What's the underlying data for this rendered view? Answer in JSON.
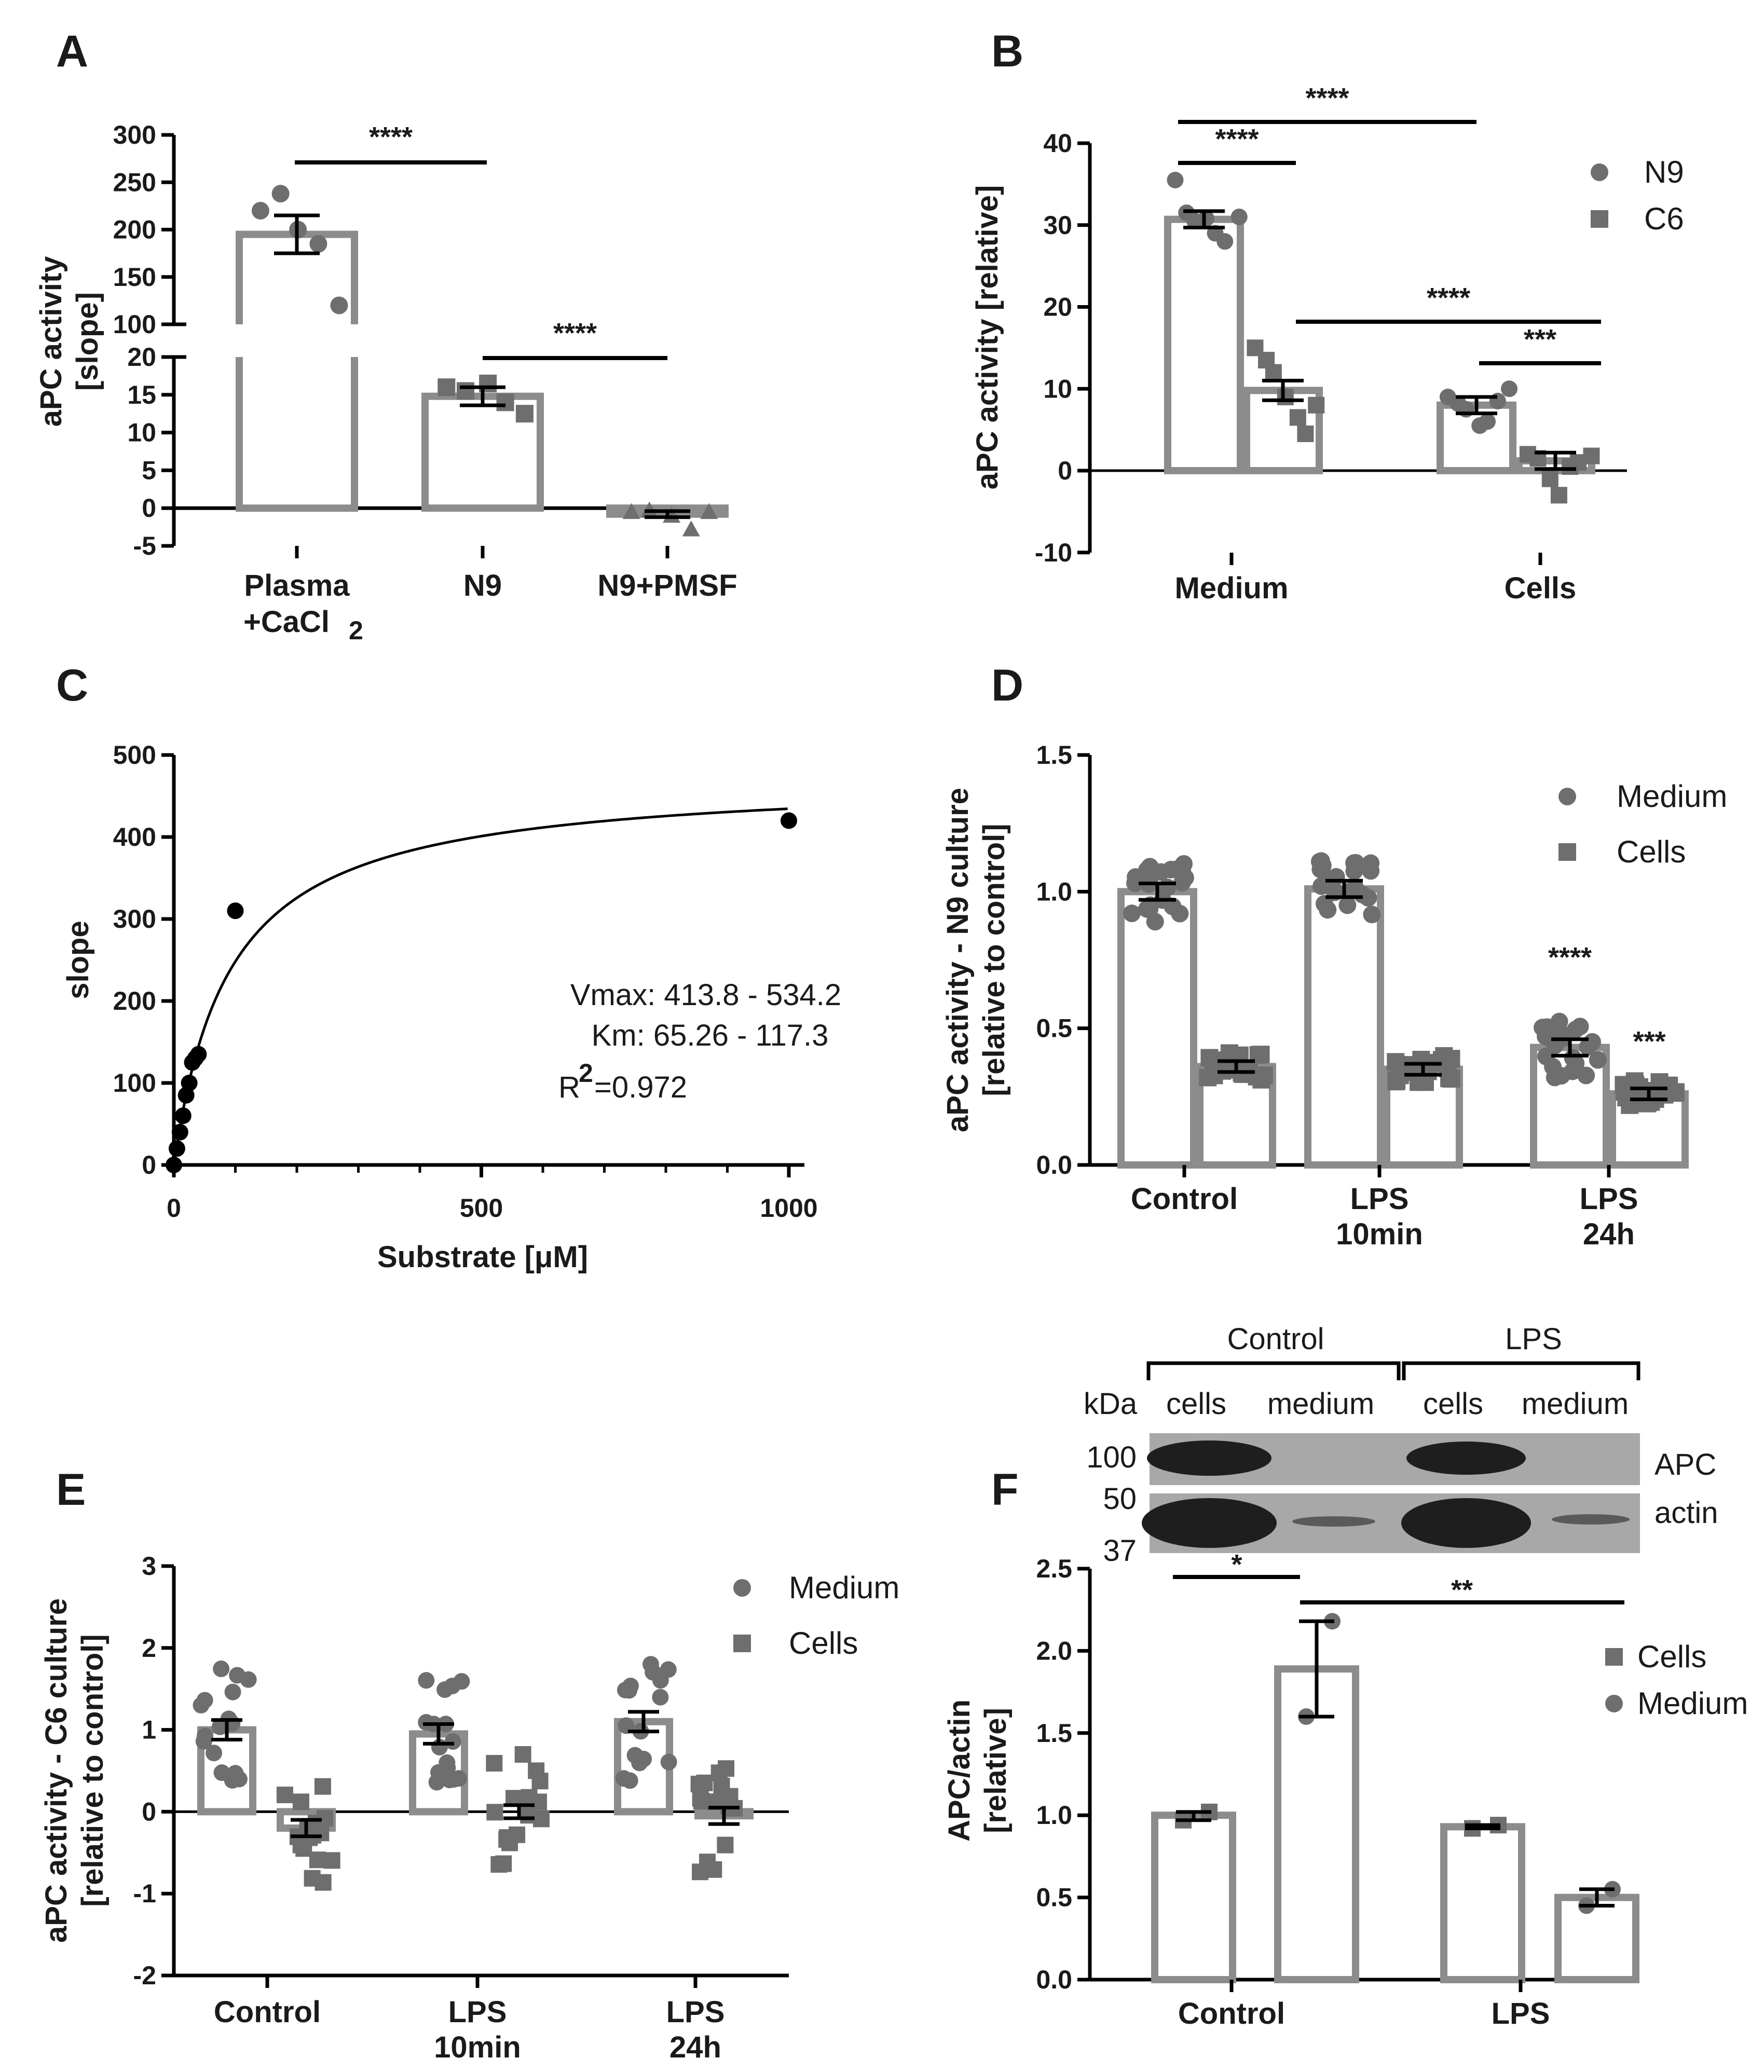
{
  "colors": {
    "marker": "#6e6e6e",
    "bar": "#8c8c8c",
    "text": "#1a1a1a",
    "blot_bg": "#a8a8a8",
    "band": "#1e1e1e"
  },
  "chart_data": [
    {
      "panel": "A",
      "type": "bar",
      "categories": [
        [
          "Plasma",
          "+CaCl",
          "2"
        ],
        [
          "N9"
        ],
        [
          "N9+PMSF"
        ]
      ],
      "series": [
        {
          "name": "aPC activity",
          "values": [
            195,
            14.8,
            -0.8
          ],
          "sem": [
            20,
            1.2,
            0.4
          ],
          "points": [
            [
              220,
              238,
              200,
              185,
              120
            ],
            [
              16,
              15.5,
              16.5,
              14,
              12.5
            ],
            [
              -0.5,
              -0.3,
              -1.0,
              -2.8,
              -0.5
            ]
          ]
        }
      ],
      "ylabel": [
        "aPC activity",
        "[slope]"
      ],
      "axis_break": {
        "lower": [
          -5,
          20
        ],
        "upper": [
          100,
          300
        ]
      },
      "yticks_lower": [
        "-5",
        "0",
        "5",
        "10",
        "15",
        "20"
      ],
      "yticks_upper": [
        "100",
        "150",
        "200",
        "250",
        "300"
      ],
      "significance": [
        "****",
        "****"
      ]
    },
    {
      "panel": "B",
      "type": "bar",
      "categories": [
        "Medium",
        "Cells"
      ],
      "series": [
        {
          "name": "N9",
          "values": [
            30.7,
            8.0
          ],
          "sem": [
            1.0,
            1.0
          ],
          "points": [
            [
              35.5,
              31.5,
              30.5,
              30.8,
              29.0,
              28.0,
              31.0
            ],
            [
              9.0,
              8.2,
              7.5,
              5.5,
              6.0,
              8.5,
              10.0
            ]
          ]
        },
        {
          "name": "C6",
          "values": [
            9.8,
            1.2
          ],
          "sem": [
            1.2,
            1.0
          ],
          "points": [
            [
              15.0,
              13.5,
              12.0,
              9.0,
              6.5,
              4.5,
              8.0
            ],
            [
              2.0,
              1.5,
              -1.0,
              -3.0,
              0.5,
              1.0,
              1.8
            ]
          ]
        }
      ],
      "ylabel": "aPC activity [relative]",
      "ylim": [
        -10,
        40
      ],
      "yticks": [
        "-10",
        "0",
        "10",
        "20",
        "30",
        "40"
      ],
      "legend": [
        "N9",
        "C6"
      ],
      "significance": [
        "****",
        "****",
        "****",
        "***"
      ]
    },
    {
      "panel": "C",
      "type": "scatter",
      "x": [
        0,
        5,
        10,
        15,
        20,
        25,
        30,
        35,
        40,
        100,
        1000
      ],
      "y": [
        0,
        20,
        40,
        60,
        85,
        100,
        125,
        130,
        135,
        310,
        420
      ],
      "fit": {
        "model": "Michaelis-Menten",
        "vmax": 474,
        "km": 91
      },
      "xlabel": "Substrate [μM]",
      "ylabel": "slope",
      "xlim": [
        0,
        1000
      ],
      "ylim": [
        0,
        500
      ],
      "xticks": [
        "0",
        "500",
        "1000"
      ],
      "yticks": [
        "0",
        "100",
        "200",
        "300",
        "400",
        "500"
      ],
      "annotations": [
        "Vmax: 413.8 - 534.2",
        "Km: 65.26 - 117.3",
        "R",
        "2",
        "=0.972"
      ]
    },
    {
      "panel": "D",
      "type": "bar",
      "categories": [
        [
          "Control"
        ],
        [
          "LPS",
          "10min"
        ],
        [
          "LPS",
          "24h"
        ]
      ],
      "series": [
        {
          "name": "Medium",
          "values": [
            1.0,
            1.01,
            0.43
          ],
          "sem": [
            0.03,
            0.03,
            0.03
          ]
        },
        {
          "name": "Cells",
          "values": [
            0.36,
            0.35,
            0.26
          ],
          "sem": [
            0.02,
            0.02,
            0.02
          ]
        }
      ],
      "ylabel": [
        "aPC activity - N9 culture",
        "[relative to control]"
      ],
      "ylim": [
        0,
        1.5
      ],
      "yticks": [
        "0.0",
        "0.5",
        "1.0",
        "1.5"
      ],
      "legend": [
        "Medium",
        "Cells"
      ],
      "significance": [
        "****",
        "***"
      ]
    },
    {
      "panel": "E",
      "type": "bar",
      "categories": [
        [
          "Control"
        ],
        [
          "LPS",
          "10min"
        ],
        [
          "LPS",
          "24h"
        ]
      ],
      "series": [
        {
          "name": "Medium",
          "values": [
            1.0,
            0.95,
            1.1
          ],
          "sem": [
            0.12,
            0.12,
            0.12
          ]
        },
        {
          "name": "Cells",
          "values": [
            -0.2,
            0.0,
            -0.05
          ],
          "sem": [
            0.1,
            0.08,
            0.1
          ]
        }
      ],
      "ylabel": [
        "aPC activity - C6 culture",
        "[relative to control]"
      ],
      "ylim": [
        -2,
        3
      ],
      "yticks": [
        "-2",
        "-1",
        "0",
        "1",
        "2",
        "3"
      ],
      "legend": [
        "Medium",
        "Cells"
      ]
    },
    {
      "panel": "F",
      "type": "bar",
      "categories": [
        "Control",
        "LPS"
      ],
      "series": [
        {
          "name": "Cells",
          "values": [
            1.0,
            0.93
          ],
          "range": [
            [
              0.97,
              1.02
            ],
            [
              0.92,
              0.94
            ]
          ],
          "points": [
            [
              0.97,
              1.02
            ],
            [
              0.92,
              0.94
            ]
          ]
        },
        {
          "name": "Medium",
          "values": [
            1.89,
            0.5
          ],
          "range": [
            [
              1.6,
              2.18
            ],
            [
              0.45,
              0.55
            ]
          ],
          "points": [
            [
              1.6,
              2.18
            ],
            [
              0.45,
              0.55
            ]
          ]
        }
      ],
      "ylabel": [
        "APC/actin",
        "[relative]"
      ],
      "ylim": [
        0,
        2.5
      ],
      "yticks": [
        "0.0",
        "0.5",
        "1.0",
        "1.5",
        "2.0",
        "2.5"
      ],
      "legend": [
        "Cells",
        "Medium"
      ],
      "significance": [
        "*",
        "**"
      ]
    }
  ],
  "labels": {
    "panels": [
      "A",
      "B",
      "C",
      "D",
      "E",
      "F"
    ]
  },
  "blot": {
    "groups": [
      "Control",
      "LPS"
    ],
    "lanes": [
      "cells",
      "medium",
      "cells",
      "medium"
    ],
    "kda_label": "kDa",
    "markers": [
      "100",
      "50",
      "37"
    ],
    "proteins": [
      "APC",
      "actin"
    ]
  }
}
